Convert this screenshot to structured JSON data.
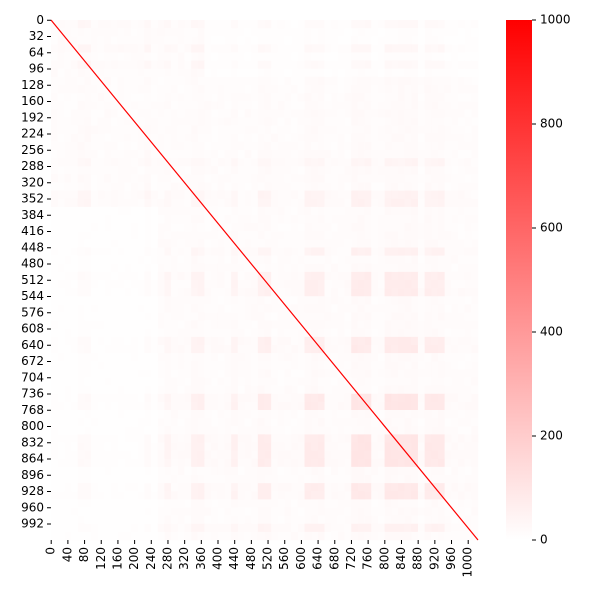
{
  "chart_data": {
    "type": "heatmap",
    "title": "",
    "xlabel": "",
    "ylabel": "",
    "grid": false,
    "x_tick_labels": [
      "0",
      "40",
      "80",
      "120",
      "160",
      "200",
      "240",
      "280",
      "320",
      "360",
      "400",
      "440",
      "480",
      "520",
      "560",
      "600",
      "640",
      "680",
      "720",
      "760",
      "800",
      "840",
      "880",
      "920",
      "960",
      "1000"
    ],
    "x_tick_values": [
      0,
      40,
      80,
      120,
      160,
      200,
      240,
      280,
      320,
      360,
      400,
      440,
      480,
      520,
      560,
      600,
      640,
      680,
      720,
      760,
      800,
      840,
      880,
      920,
      960,
      1000
    ],
    "y_tick_labels": [
      "0",
      "32",
      "64",
      "96",
      "128",
      "160",
      "192",
      "224",
      "256",
      "288",
      "320",
      "352",
      "384",
      "416",
      "448",
      "480",
      "512",
      "544",
      "576",
      "608",
      "640",
      "672",
      "704",
      "736",
      "768",
      "800",
      "832",
      "864",
      "896",
      "928",
      "960",
      "992"
    ],
    "y_tick_values": [
      0,
      32,
      64,
      96,
      128,
      160,
      192,
      224,
      256,
      288,
      320,
      352,
      384,
      416,
      448,
      480,
      512,
      544,
      576,
      608,
      640,
      672,
      704,
      736,
      768,
      800,
      832,
      864,
      896,
      928,
      960,
      992
    ],
    "matrix_size": 1024,
    "diagonal_value": 1000,
    "off_diagonal_range": [
      0,
      160
    ],
    "colormap": {
      "min_color": "#ffffff",
      "max_color": "#ff0000",
      "vmin": 0,
      "vmax": 1000
    },
    "colorbar": {
      "tick_labels": [
        "0",
        "200",
        "400",
        "600",
        "800",
        "1000"
      ],
      "tick_values": [
        0,
        200,
        400,
        600,
        800,
        1000
      ]
    }
  }
}
